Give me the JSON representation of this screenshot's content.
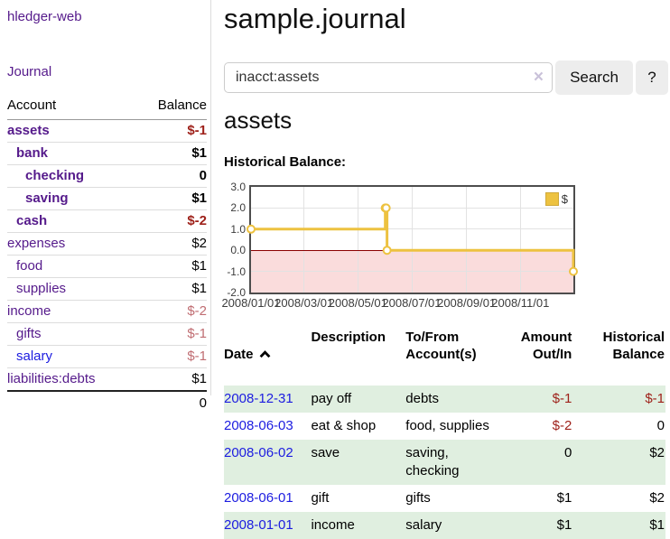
{
  "brand": "hledger-web",
  "sidebar": {
    "journal_link": "Journal",
    "accounts": {
      "col_account": "Account",
      "col_balance": "Balance",
      "rows": [
        {
          "name": "assets",
          "balance": "$-1",
          "indent": 1,
          "bold": true,
          "balance_class": "neg"
        },
        {
          "name": "bank",
          "balance": "$1",
          "indent": 2,
          "bold": true,
          "balance_class": ""
        },
        {
          "name": "checking",
          "balance": "0",
          "indent": 3,
          "bold": true,
          "balance_class": ""
        },
        {
          "name": "saving",
          "balance": "$1",
          "indent": 3,
          "bold": true,
          "balance_class": ""
        },
        {
          "name": "cash",
          "balance": "$-2",
          "indent": 2,
          "bold": true,
          "balance_class": "neg"
        },
        {
          "name": "expenses",
          "balance": "$2",
          "indent": 1,
          "bold": false,
          "balance_class": ""
        },
        {
          "name": "food",
          "balance": "$1",
          "indent": 2,
          "bold": false,
          "balance_class": ""
        },
        {
          "name": "supplies",
          "balance": "$1",
          "indent": 2,
          "bold": false,
          "balance_class": ""
        },
        {
          "name": "income",
          "balance": "$-2",
          "indent": 1,
          "bold": false,
          "balance_class": "neg-faded"
        },
        {
          "name": "gifts",
          "balance": "$-1",
          "indent": 2,
          "bold": false,
          "balance_class": "neg-faded"
        },
        {
          "name": "salary",
          "balance": "$-1",
          "indent": 2,
          "bold": false,
          "balance_class": "neg-faded",
          "link_class": "blue"
        },
        {
          "name": "liabilities:debts",
          "balance": "$1",
          "indent": 1,
          "bold": false,
          "balance_class": ""
        }
      ],
      "total": "0"
    }
  },
  "main": {
    "title": "sample.journal",
    "search": {
      "value": "inacct:assets",
      "clear_icon": "×",
      "search_button": "Search",
      "help_button": "?"
    },
    "account_heading": "assets",
    "chart_heading": "Historical Balance:",
    "register": {
      "headers": {
        "date": "Date",
        "description": "Description",
        "accounts": "To/From\nAccount(s)",
        "amount": "Amount\nOut/In",
        "balance": "Historical\nBalance"
      },
      "rows": [
        {
          "date": "2008-12-31",
          "description": "pay off",
          "accounts": "debts",
          "amount": "$-1",
          "balance": "$-1",
          "amount_class": "neg",
          "balance_class": "neg",
          "striped": true
        },
        {
          "date": "2008-06-03",
          "description": "eat & shop",
          "accounts": "food, supplies",
          "amount": "$-2",
          "balance": "0",
          "amount_class": "neg",
          "balance_class": "",
          "striped": false
        },
        {
          "date": "2008-06-02",
          "description": "save",
          "accounts": "saving,\nchecking",
          "amount": "0",
          "balance": "$2",
          "amount_class": "",
          "balance_class": "",
          "striped": true
        },
        {
          "date": "2008-06-01",
          "description": "gift",
          "accounts": "gifts",
          "amount": "$1",
          "balance": "$2",
          "amount_class": "",
          "balance_class": "",
          "striped": false
        },
        {
          "date": "2008-01-01",
          "description": "income",
          "accounts": "salary",
          "amount": "$1",
          "balance": "$1",
          "amount_class": "",
          "balance_class": "",
          "striped": true
        }
      ]
    }
  },
  "chart_data": {
    "type": "line",
    "title": "Historical Balance:",
    "step": true,
    "xrange": [
      "2008-01-01",
      "2008-12-31"
    ],
    "ylim": [
      -2.0,
      3.0
    ],
    "yticks": [
      {
        "label": "3.0",
        "value": 3
      },
      {
        "label": "2.0",
        "value": 2
      },
      {
        "label": "1.0",
        "value": 1
      },
      {
        "label": "0.0",
        "value": 0
      },
      {
        "label": "-1.0",
        "value": -1
      },
      {
        "label": "-2.0",
        "value": -2
      }
    ],
    "xticks": [
      {
        "label": "2008/01/01",
        "date": "2008-01-01"
      },
      {
        "label": "2008/03/01",
        "date": "2008-03-01"
      },
      {
        "label": "2008/05/01",
        "date": "2008-05-01"
      },
      {
        "label": "2008/07/01",
        "date": "2008-07-01"
      },
      {
        "label": "2008/09/01",
        "date": "2008-09-01"
      },
      {
        "label": "2008/11/01",
        "date": "2008-11-01"
      }
    ],
    "series": [
      {
        "name": "$",
        "color": "#edc240",
        "points": [
          [
            "2008-01-01",
            1
          ],
          [
            "2008-06-01",
            2
          ],
          [
            "2008-06-02",
            2
          ],
          [
            "2008-06-03",
            0
          ],
          [
            "2008-12-31",
            -1
          ]
        ]
      }
    ],
    "grid": true,
    "grid_color": "#e2e2e2",
    "negative_region_color": "#fadcdc",
    "zero_line_color": "#8b0000",
    "legend_position": "top-right",
    "colors": {
      "accent_purple": "#551a8b",
      "link_blue": "#1c1ce0",
      "negative_red": "#9e211a",
      "negative_faded": "#c06d72",
      "row_stripe_green": "#e0efe0",
      "series_gold": "#edc240"
    }
  }
}
